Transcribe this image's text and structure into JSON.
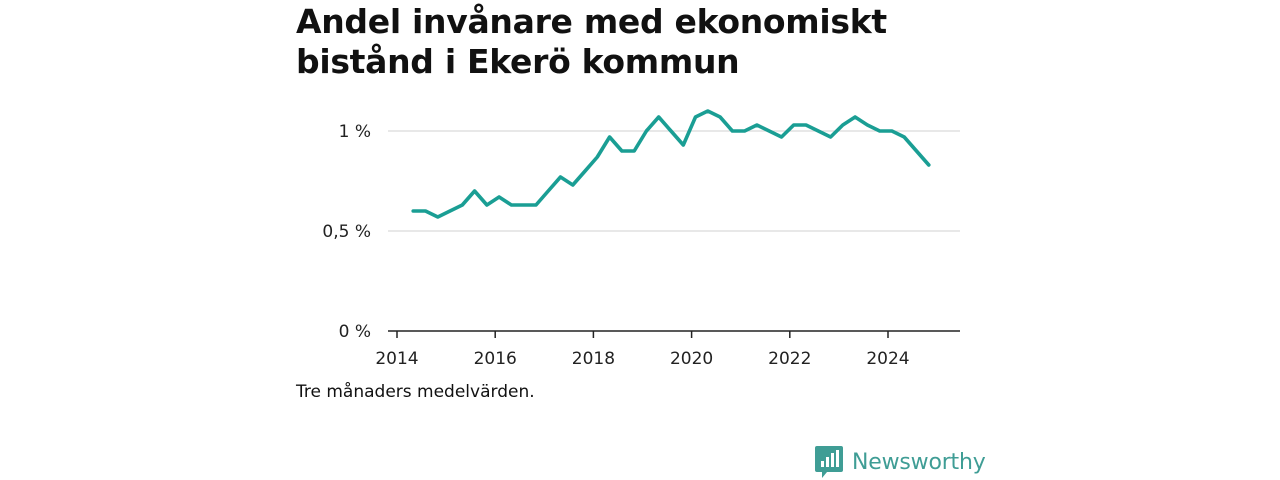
{
  "title": "Andel invånare med ekonomiskt bistånd i Ekerö kommun",
  "note": "Tre månaders medelvärden.",
  "brand": {
    "name": "Newsworthy",
    "icon": "newsworthy-logo-icon",
    "color": "#3f9d95"
  },
  "colors": {
    "line": "#1a9e94",
    "grid": "#d9d9d9",
    "axis": "#222222"
  },
  "chart_data": {
    "type": "line",
    "title": "Andel invånare med ekonomiskt bistånd i Ekerö kommun",
    "xlabel": "",
    "ylabel": "",
    "x_unit": "year",
    "xlim": [
      2014,
      2025.4
    ],
    "ylim": [
      0,
      1.2
    ],
    "x_ticks": [
      2014,
      2016,
      2018,
      2020,
      2022,
      2024
    ],
    "y_ticks": [
      {
        "value": 0,
        "label": "0 %"
      },
      {
        "value": 0.5,
        "label": "0,5 %"
      },
      {
        "value": 1,
        "label": "1 %"
      }
    ],
    "grid": "horizontal",
    "series": [
      {
        "x": [
          2014.33,
          2014.58,
          2014.83,
          2015.08,
          2015.33,
          2015.58,
          2015.83,
          2016.08,
          2016.33,
          2016.58,
          2016.83,
          2017.08,
          2017.33,
          2017.58,
          2017.83,
          2018.08,
          2018.33,
          2018.58,
          2018.83,
          2019.08,
          2019.33,
          2019.58,
          2019.83,
          2020.08,
          2020.33,
          2020.58,
          2020.83,
          2021.08,
          2021.33,
          2021.58,
          2021.83,
          2022.08,
          2022.33,
          2022.58,
          2022.83,
          2023.08,
          2023.33,
          2023.58,
          2023.83,
          2024.08,
          2024.33,
          2024.58,
          2024.83
        ],
        "values": [
          0.6,
          0.6,
          0.57,
          0.6,
          0.63,
          0.7,
          0.63,
          0.67,
          0.63,
          0.63,
          0.63,
          0.7,
          0.77,
          0.73,
          0.8,
          0.87,
          0.97,
          0.9,
          0.9,
          1.0,
          1.07,
          1.0,
          0.93,
          1.07,
          1.1,
          1.07,
          1.0,
          1.0,
          1.03,
          1.0,
          0.97,
          1.03,
          1.03,
          1.0,
          0.97,
          1.03,
          1.07,
          1.03,
          1.0,
          1.0,
          0.97,
          0.9,
          0.83
        ]
      }
    ]
  }
}
